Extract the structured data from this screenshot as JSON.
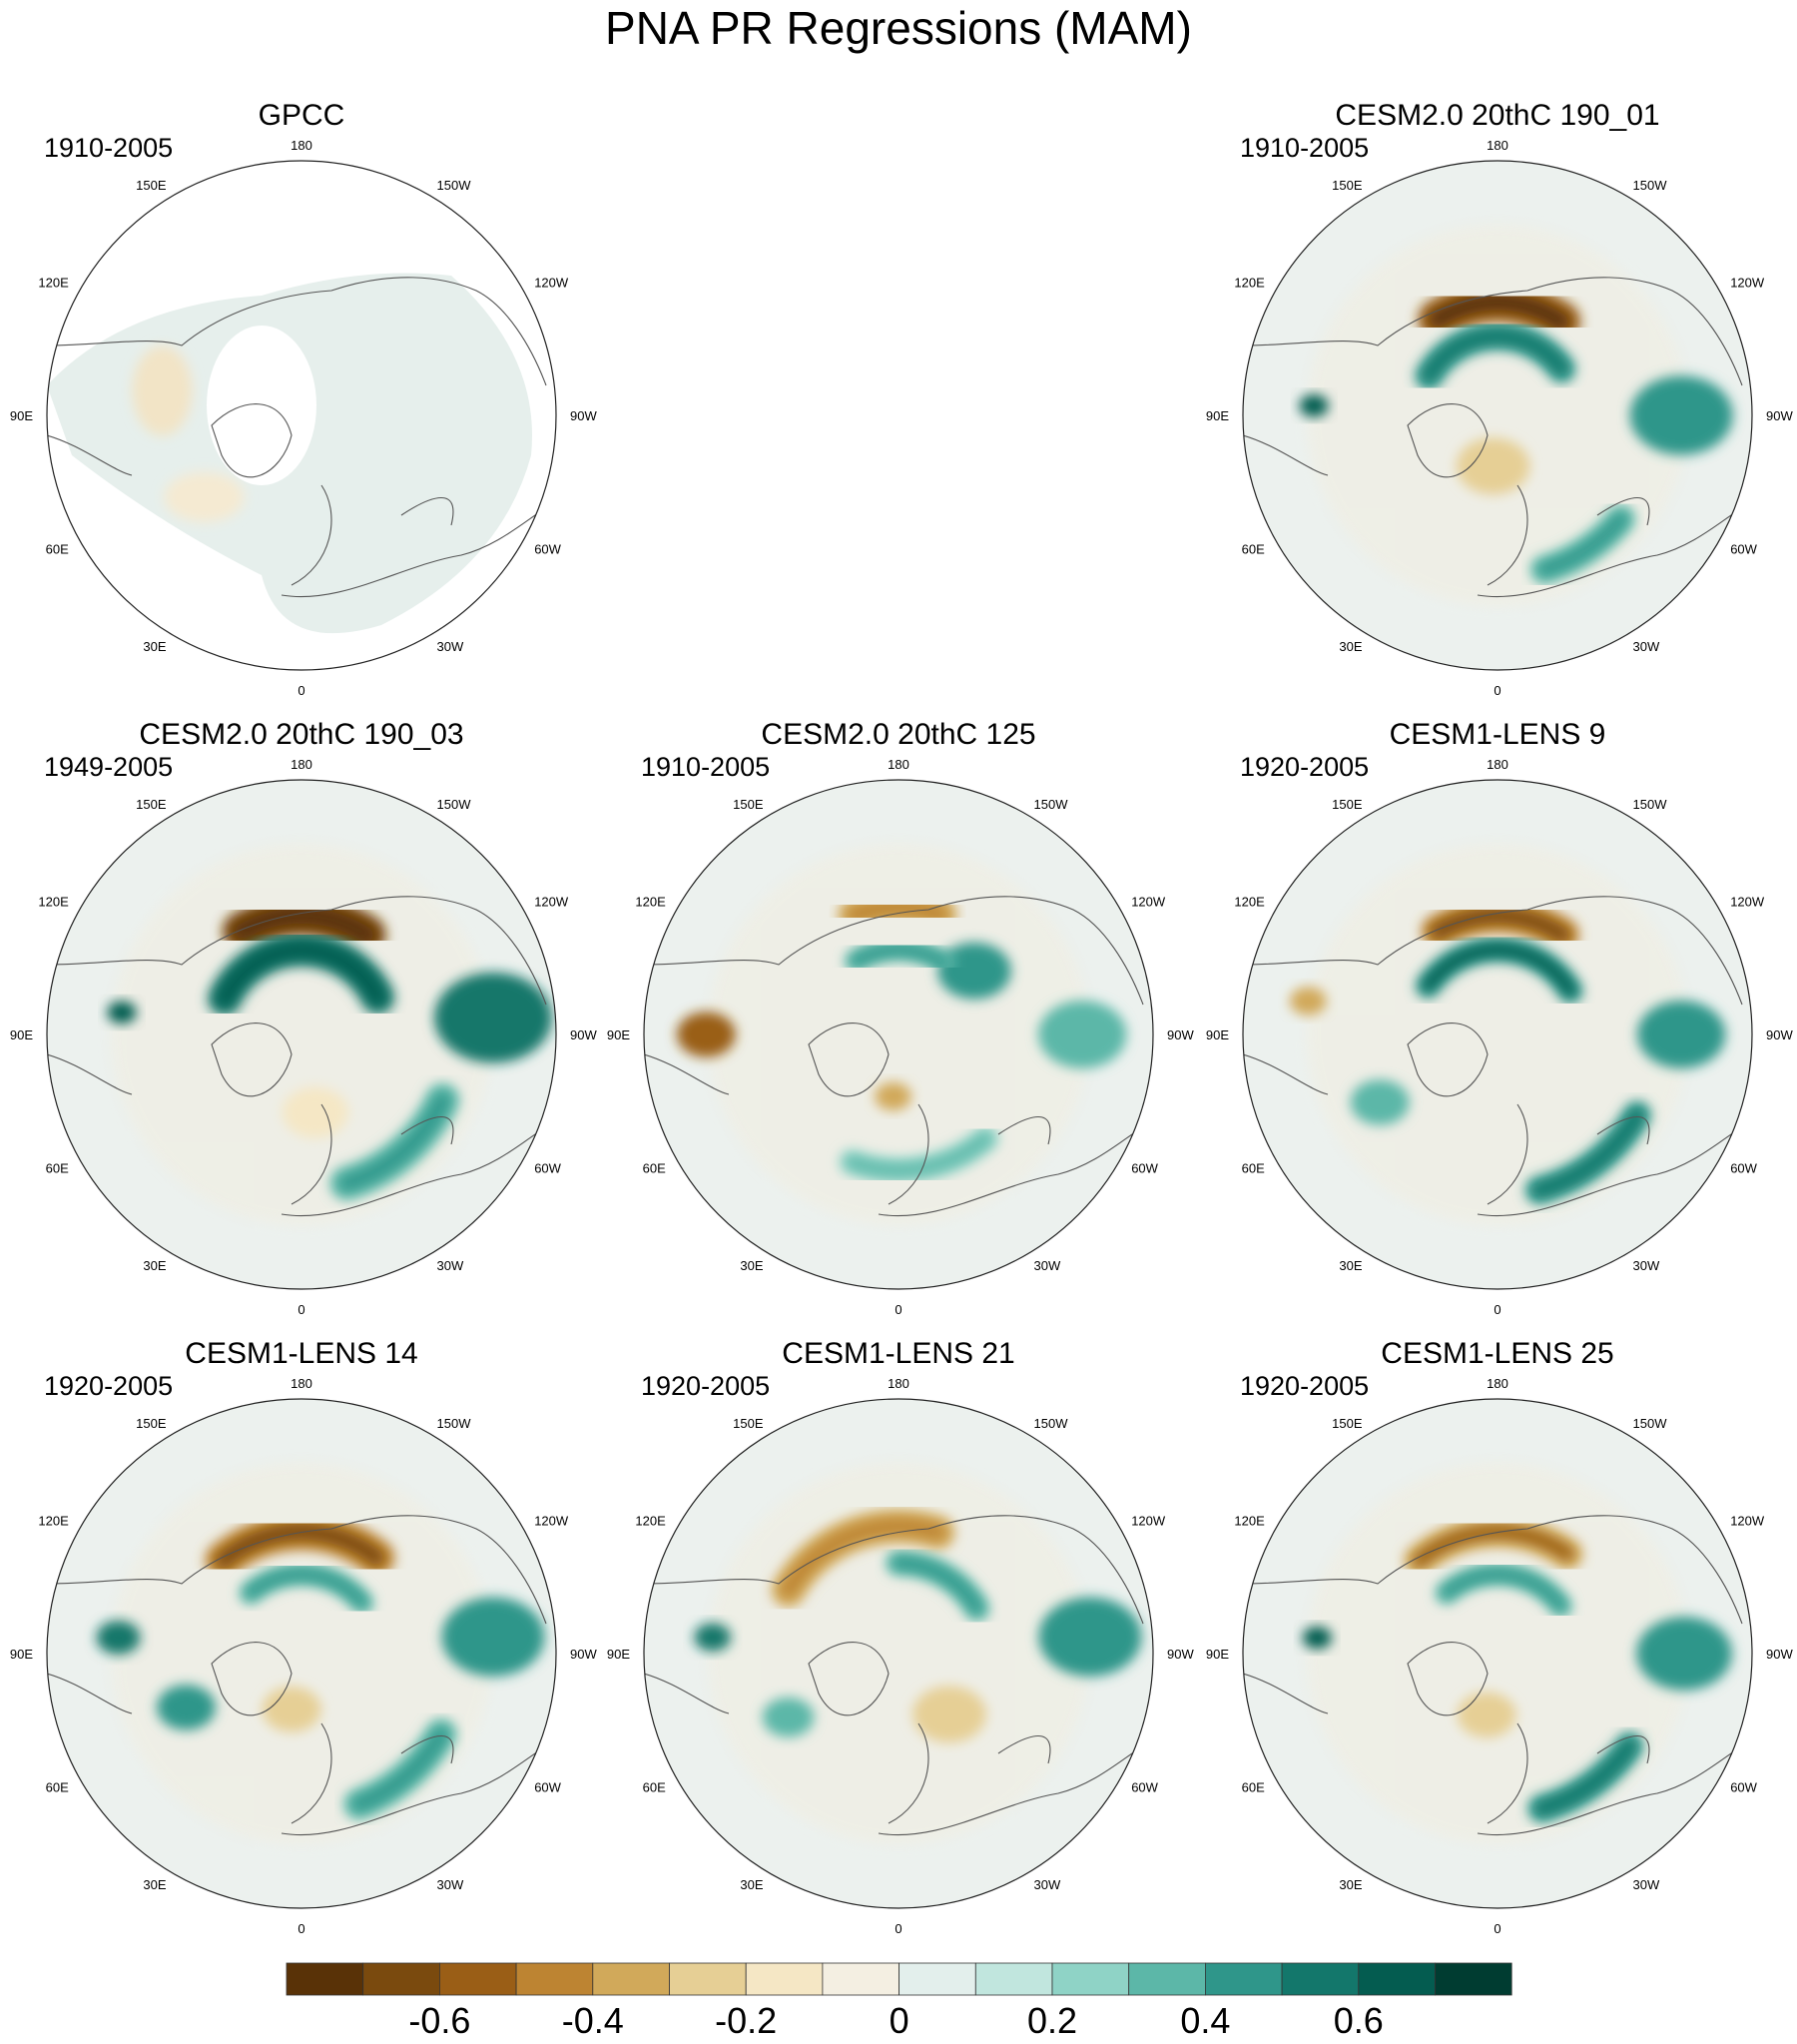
{
  "chart_data": {
    "type": "polar-stereographic contour map panels",
    "title": "PNA PR Regressions (MAM)",
    "longitude_labels": [
      "180",
      "150E",
      "120E",
      "90E",
      "60E",
      "30E",
      "0",
      "30W",
      "60W",
      "90W",
      "120W",
      "150W"
    ],
    "panels": [
      {
        "id": "gpcc",
        "title": "GPCC",
        "period": "1910-2005",
        "row": 0,
        "col": 0,
        "observational": true,
        "features": []
      },
      {
        "id": "cesm2-190-01",
        "title": "CESM2.0 20thC 190_01",
        "period": "1910-2005",
        "row": 0,
        "col": 2,
        "features": [
          {
            "kind": "band",
            "lon": [
              148,
              215
            ],
            "lat": 50,
            "width": 14,
            "value": -0.55
          },
          {
            "kind": "band",
            "lon": [
              120,
              235
            ],
            "lat": 62,
            "width": 10,
            "value": 0.4
          },
          {
            "kind": "blob",
            "lon": 270,
            "lat": 25,
            "r": 14,
            "value": 0.4
          },
          {
            "kind": "band",
            "lon": [
              310,
              345
            ],
            "lat": 33,
            "width": 10,
            "value": 0.35
          },
          {
            "kind": "blob",
            "lon": 5,
            "lat": 72,
            "r": 10,
            "value": -0.25
          },
          {
            "kind": "blob",
            "lon": 93,
            "lat": 25,
            "r": 4,
            "value": 0.6
          }
        ]
      },
      {
        "id": "cesm2-190-03",
        "title": "CESM2.0 20thC 190_03",
        "period": "1949-2005",
        "row": 1,
        "col": 0,
        "features": [
          {
            "kind": "band",
            "lon": [
              150,
              215
            ],
            "lat": 48,
            "width": 14,
            "value": -0.65
          },
          {
            "kind": "band",
            "lon": [
              115,
              245
            ],
            "lat": 60,
            "width": 12,
            "value": 0.5
          },
          {
            "kind": "blob",
            "lon": 265,
            "lat": 22,
            "r": 16,
            "value": 0.5
          },
          {
            "kind": "band",
            "lon": [
              295,
              345
            ],
            "lat": 35,
            "width": 12,
            "value": 0.3
          },
          {
            "kind": "blob",
            "lon": 97,
            "lat": 26,
            "r": 4,
            "value": 0.6
          },
          {
            "kind": "blob",
            "lon": 350,
            "lat": 62,
            "r": 9,
            "value": -0.2
          }
        ]
      },
      {
        "id": "cesm2-125",
        "title": "CESM2.0 20thC 125",
        "period": "1910-2005",
        "row": 1,
        "col": 1,
        "features": [
          {
            "kind": "band",
            "lon": [
              160,
              200
            ],
            "lat": 45,
            "width": 12,
            "value": -0.35
          },
          {
            "kind": "blob",
            "lon": 230,
            "lat": 55,
            "r": 10,
            "value": 0.4
          },
          {
            "kind": "band",
            "lon": [
              150,
              215
            ],
            "lat": 60,
            "width": 8,
            "value": 0.3
          },
          {
            "kind": "blob",
            "lon": 90,
            "lat": 22,
            "r": 8,
            "value": -0.55
          },
          {
            "kind": "blob",
            "lon": 270,
            "lat": 25,
            "r": 12,
            "value": 0.35
          },
          {
            "kind": "band",
            "lon": [
              320,
              20
            ],
            "lat": 42,
            "width": 9,
            "value": 0.25
          },
          {
            "kind": "blob",
            "lon": 5,
            "lat": 68,
            "r": 5,
            "value": -0.4
          }
        ]
      },
      {
        "id": "lens-9",
        "title": "CESM1-LENS 9",
        "period": "1920-2005",
        "row": 1,
        "col": 2,
        "features": [
          {
            "kind": "band",
            "lon": [
              150,
              215
            ],
            "lat": 48,
            "width": 12,
            "value": -0.45
          },
          {
            "kind": "band",
            "lon": [
              125,
              240
            ],
            "lat": 60,
            "width": 9,
            "value": 0.45
          },
          {
            "kind": "blob",
            "lon": 270,
            "lat": 25,
            "r": 12,
            "value": 0.4
          },
          {
            "kind": "band",
            "lon": [
              300,
              345
            ],
            "lat": 33,
            "width": 10,
            "value": 0.4
          },
          {
            "kind": "blob",
            "lon": 60,
            "lat": 42,
            "r": 8,
            "value": 0.3
          },
          {
            "kind": "blob",
            "lon": 100,
            "lat": 22,
            "r": 5,
            "value": -0.4
          }
        ]
      },
      {
        "id": "lens-14",
        "title": "CESM1-LENS 14",
        "period": "1920-2005",
        "row": 2,
        "col": 0,
        "features": [
          {
            "kind": "band",
            "lon": [
              140,
              220
            ],
            "lat": 47,
            "width": 13,
            "value": -0.45
          },
          {
            "kind": "band",
            "lon": [
              140,
              230
            ],
            "lat": 62,
            "width": 8,
            "value": 0.3
          },
          {
            "kind": "blob",
            "lon": 265,
            "lat": 22,
            "r": 14,
            "value": 0.4
          },
          {
            "kind": "band",
            "lon": [
              300,
              340
            ],
            "lat": 33,
            "width": 11,
            "value": 0.35
          },
          {
            "kind": "blob",
            "lon": 95,
            "lat": 25,
            "r": 6,
            "value": 0.5
          },
          {
            "kind": "blob",
            "lon": 65,
            "lat": 45,
            "r": 8,
            "value": 0.4
          },
          {
            "kind": "blob",
            "lon": 10,
            "lat": 70,
            "r": 8,
            "value": -0.3
          }
        ]
      },
      {
        "id": "lens-21",
        "title": "CESM1-LENS 21",
        "period": "1920-2005",
        "row": 2,
        "col": 1,
        "features": [
          {
            "kind": "band",
            "lon": [
              120,
              200
            ],
            "lat": 45,
            "width": 12,
            "value": -0.35
          },
          {
            "kind": "band",
            "lon": [
              180,
              240
            ],
            "lat": 58,
            "width": 9,
            "value": 0.3
          },
          {
            "kind": "blob",
            "lon": 265,
            "lat": 22,
            "r": 14,
            "value": 0.4
          },
          {
            "kind": "blob",
            "lon": 95,
            "lat": 24,
            "r": 5,
            "value": 0.5
          },
          {
            "kind": "blob",
            "lon": 320,
            "lat": 62,
            "r": 10,
            "value": -0.3
          },
          {
            "kind": "blob",
            "lon": 60,
            "lat": 45,
            "r": 7,
            "value": 0.35
          }
        ]
      },
      {
        "id": "lens-25",
        "title": "CESM1-LENS 25",
        "period": "1920-2005",
        "row": 2,
        "col": 2,
        "features": [
          {
            "kind": "band",
            "lon": [
              140,
              215
            ],
            "lat": 47,
            "width": 11,
            "value": -0.4
          },
          {
            "kind": "band",
            "lon": [
              140,
              235
            ],
            "lat": 62,
            "width": 8,
            "value": 0.35
          },
          {
            "kind": "blob",
            "lon": 270,
            "lat": 24,
            "r": 13,
            "value": 0.45
          },
          {
            "kind": "band",
            "lon": [
              305,
              345
            ],
            "lat": 33,
            "width": 10,
            "value": 0.4
          },
          {
            "kind": "blob",
            "lon": 95,
            "lat": 26,
            "r": 4,
            "value": 0.6
          },
          {
            "kind": "blob",
            "lon": 10,
            "lat": 68,
            "r": 8,
            "value": -0.3
          }
        ]
      }
    ],
    "colorbar": {
      "levels": [
        -0.7,
        -0.6,
        -0.5,
        -0.4,
        -0.3,
        -0.2,
        -0.1,
        0,
        0.1,
        0.2,
        0.3,
        0.4,
        0.5,
        0.6,
        0.7
      ],
      "colors": [
        "#593207",
        "#7a4a0e",
        "#9a5e16",
        "#bd8432",
        "#d1a95a",
        "#e6cf95",
        "#f5e7c5",
        "#f4efe2",
        "#e3efec",
        "#c1e6de",
        "#8fd3c6",
        "#5cb7a8",
        "#2f968a",
        "#13776b",
        "#045c50",
        "#003c31"
      ],
      "tick_labels": [
        {
          "value": -0.6,
          "label": "-0.6"
        },
        {
          "value": -0.4,
          "label": "-0.4"
        },
        {
          "value": -0.2,
          "label": "-0.2"
        },
        {
          "value": 0,
          "label": "0"
        },
        {
          "value": 0.2,
          "label": "0.2"
        },
        {
          "value": 0.4,
          "label": "0.4"
        },
        {
          "value": 0.6,
          "label": "0.6"
        }
      ]
    }
  }
}
